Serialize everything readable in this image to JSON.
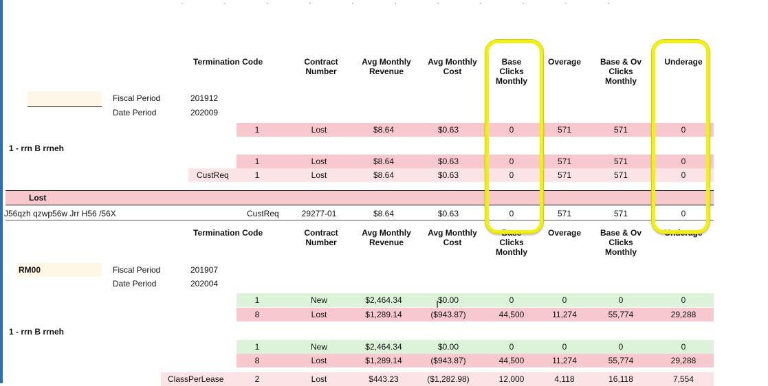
{
  "columns": [
    "Termination Code",
    "Contract Number",
    "Avg Monthly Revenue",
    "Avg Monthly Cost",
    "Base Clicks Monthly",
    "Overage",
    "Base & Ov Clicks Monthly",
    "Underage"
  ],
  "headers": {
    "termination_code": "Termination Code",
    "contract_number": [
      "Contract",
      "Number"
    ],
    "avg_revenue": [
      "Avg Monthly",
      "Revenue"
    ],
    "avg_cost": [
      "Avg Monthly",
      "Cost"
    ],
    "base_clicks": [
      "Base",
      "Clicks",
      "Monthly"
    ],
    "overage": "Overage",
    "base_ov": [
      "Base & Ov",
      "Clicks",
      "Monthly"
    ],
    "underage": "Underage"
  },
  "section1": {
    "fiscal_label": "Fiscal Period",
    "fiscal_value": "201912",
    "date_label": "Date Period",
    "date_value": "202009",
    "group_label": "1 - rrn B rrneh",
    "row_a": {
      "count": "1",
      "status": "Lost",
      "revenue": "$8.64",
      "cost": "$0.63",
      "base": "0",
      "overage": "571",
      "baseov": "571",
      "underage": "0"
    },
    "row_b": {
      "count": "1",
      "status": "Lost",
      "revenue": "$8.64",
      "cost": "$0.63",
      "base": "0",
      "overage": "571",
      "baseov": "571",
      "underage": "0"
    },
    "row_c": {
      "code": "CustReq",
      "count": "1",
      "status": "Lost",
      "revenue": "$8.64",
      "cost": "$0.63",
      "base": "0",
      "overage": "571",
      "baseov": "571",
      "underage": "0"
    },
    "lost_label": "Lost",
    "detail": {
      "name": "J56qzh qzwp56w Jrr H56 /56X",
      "code": "CustReq",
      "contract": "29277-01",
      "revenue": "$8.64",
      "cost": "$0.63",
      "base": "0",
      "overage": "571",
      "baseov": "571",
      "underage": "0"
    }
  },
  "section2": {
    "account": "RM00",
    "fiscal_label": "Fiscal Period",
    "fiscal_value": "201907",
    "date_label": "Date Period",
    "date_value": "202004",
    "group_label": "1 - rrn B rrneh",
    "row_a": {
      "count": "1",
      "status": "New",
      "revenue": "$2,464.34",
      "cost": "$0.00",
      "base": "0",
      "overage": "0",
      "baseov": "0",
      "underage": "0"
    },
    "row_b": {
      "count": "8",
      "status": "Lost",
      "revenue": "$1,289.14",
      "cost": "($943.87)",
      "base": "44,500",
      "overage": "11,274",
      "baseov": "55,774",
      "underage": "29,288"
    },
    "row_c": {
      "count": "1",
      "status": "New",
      "revenue": "$2,464.34",
      "cost": "$0.00",
      "base": "0",
      "overage": "0",
      "baseov": "0",
      "underage": "0"
    },
    "row_d": {
      "count": "8",
      "status": "Lost",
      "revenue": "$1,289.14",
      "cost": "($943.87)",
      "base": "44,500",
      "overage": "11,274",
      "baseov": "55,774",
      "underage": "29,288"
    },
    "row_e": {
      "code": "ClassPerLease",
      "count": "2",
      "status": "Lost",
      "revenue": "$443.23",
      "cost": "($1,282.98)",
      "base": "12,000",
      "overage": "4,118",
      "baseov": "16,118",
      "underage": "7,554"
    }
  },
  "colors": {
    "pink": "#f7c9cf",
    "light_pink": "#fbe3e6",
    "green": "#dcf3da",
    "highlight": "#f2ef14",
    "left_bar": "#2b6fb0"
  },
  "cursor_icon": "text-cursor-icon"
}
